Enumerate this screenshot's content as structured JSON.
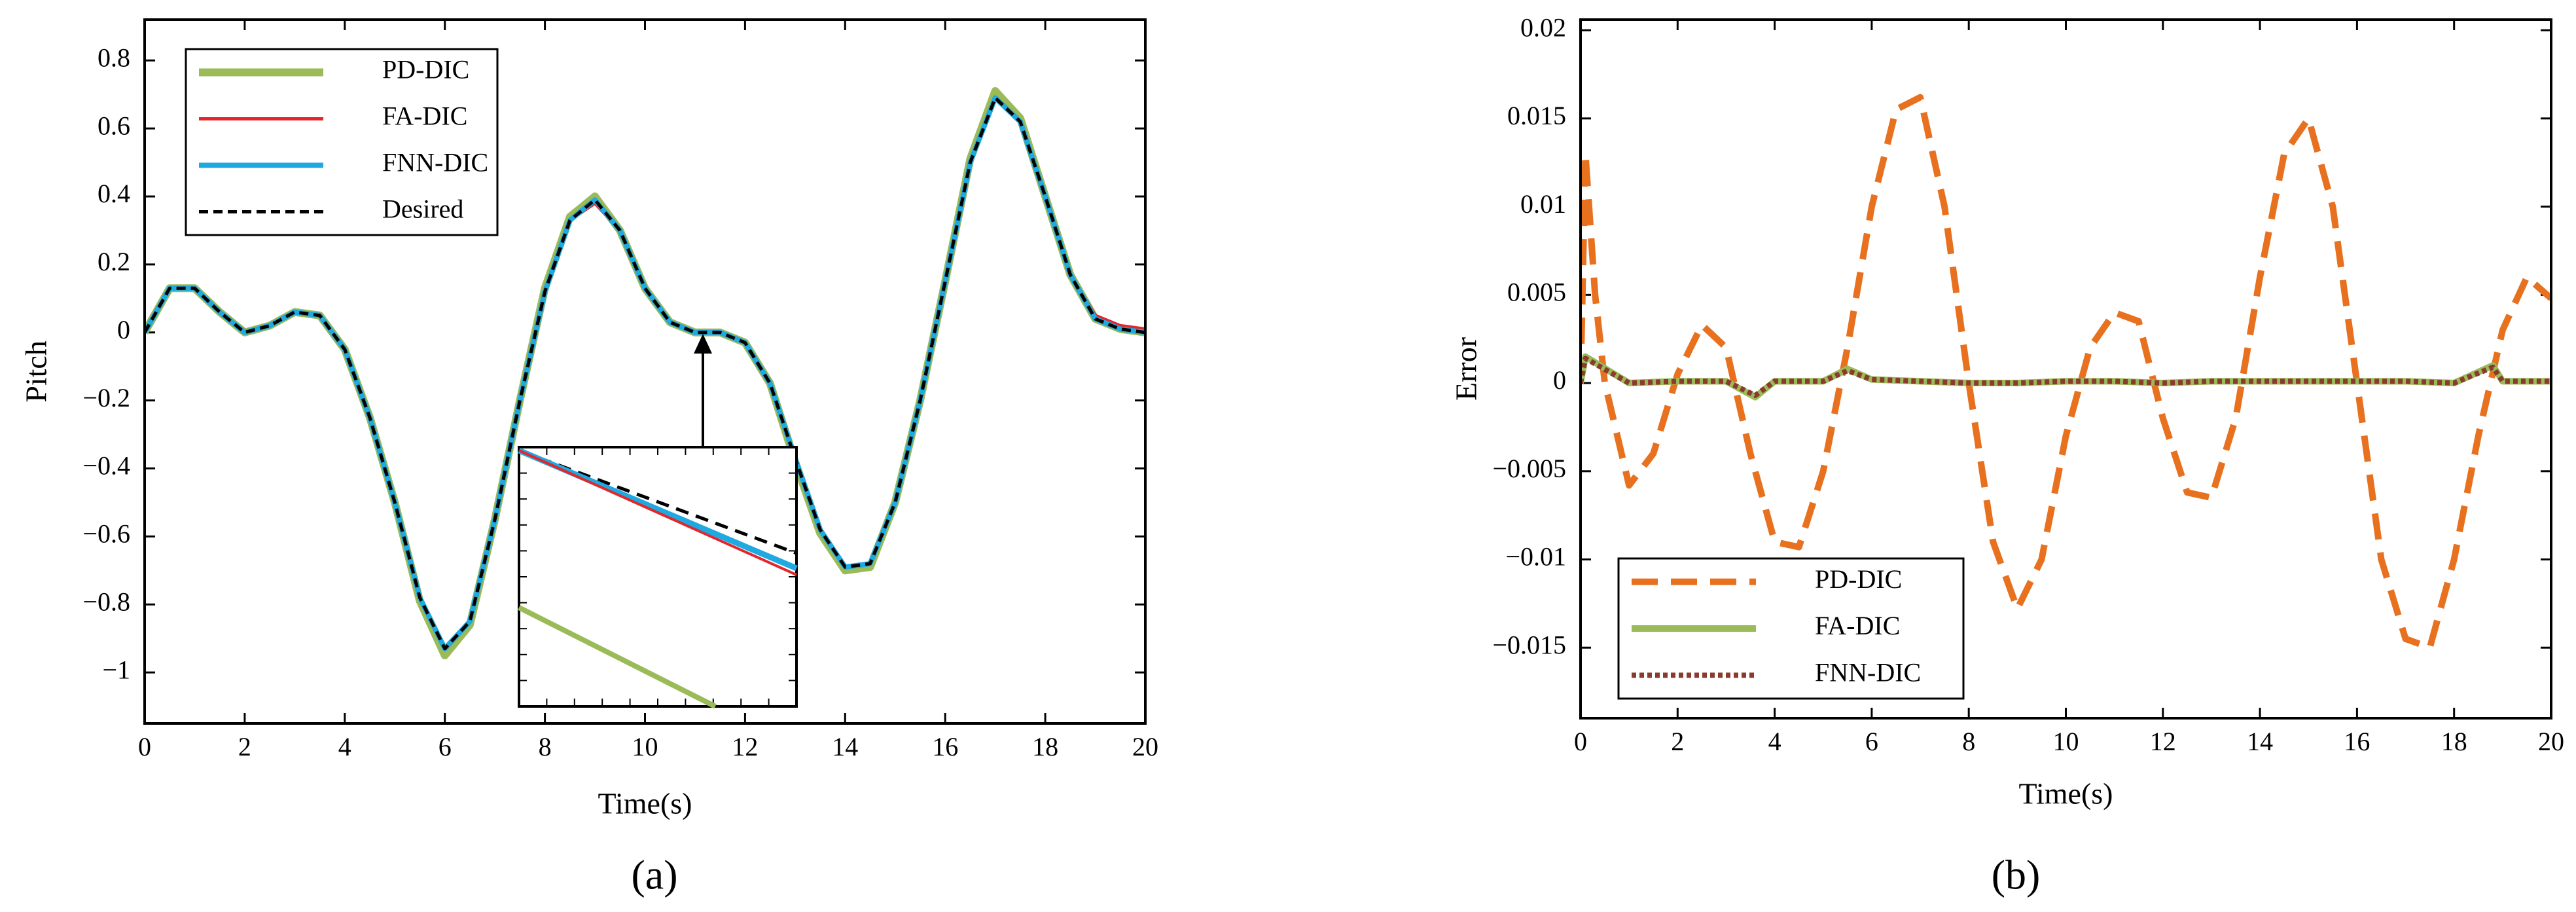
{
  "chart_data": [
    {
      "type": "line",
      "caption": "(a)",
      "xlabel": "Time(s)",
      "ylabel": "Pitch",
      "xlim": [
        0,
        20
      ],
      "xticks": [
        0,
        2,
        4,
        6,
        8,
        10,
        12,
        14,
        16,
        18,
        20
      ],
      "ylim": [
        -1.15,
        0.92
      ],
      "yticks": [
        {
          "value": -1,
          "label": "−1"
        },
        {
          "value": -0.8,
          "label": "−0.8"
        },
        {
          "value": -0.6,
          "label": "−0.6"
        },
        {
          "value": -0.4,
          "label": "−0.4"
        },
        {
          "value": -0.2,
          "label": "−0.2"
        },
        0,
        0.2,
        0.4,
        0.6,
        0.8
      ],
      "legend": "upper left",
      "x": [
        0,
        0.5,
        1,
        1.5,
        2,
        2.5,
        3,
        3.5,
        4,
        4.5,
        5,
        5.5,
        6,
        6.5,
        7,
        7.5,
        8,
        8.5,
        9,
        9.5,
        10,
        10.5,
        11,
        11.5,
        12,
        12.5,
        13,
        13.5,
        14,
        14.5,
        15,
        15.5,
        16,
        16.5,
        17,
        17.5,
        18,
        18.5,
        19,
        19.5,
        20
      ],
      "series": [
        {
          "name": "PD-DIC",
          "color": "#9bbb59",
          "linestyle": "solid",
          "values": [
            0,
            0.13,
            0.13,
            0.06,
            0.0,
            0.02,
            0.06,
            0.05,
            -0.05,
            -0.25,
            -0.5,
            -0.79,
            -0.95,
            -0.86,
            -0.55,
            -0.2,
            0.13,
            0.34,
            0.4,
            0.3,
            0.13,
            0.03,
            0.0,
            0.0,
            -0.03,
            -0.15,
            -0.38,
            -0.59,
            -0.7,
            -0.69,
            -0.5,
            -0.2,
            0.15,
            0.51,
            0.71,
            0.63,
            0.4,
            0.17,
            0.04,
            0.01,
            0
          ]
        },
        {
          "name": "FA-DIC",
          "color": "#e3262b",
          "linestyle": "solid",
          "values": [
            0,
            0.13,
            0.13,
            0.06,
            0.0,
            0.02,
            0.06,
            0.05,
            -0.05,
            -0.25,
            -0.5,
            -0.78,
            -0.93,
            -0.85,
            -0.55,
            -0.2,
            0.12,
            0.33,
            0.38,
            0.3,
            0.13,
            0.03,
            0.0,
            0.0,
            -0.03,
            -0.15,
            -0.37,
            -0.58,
            -0.69,
            -0.68,
            -0.5,
            -0.2,
            0.15,
            0.5,
            0.69,
            0.62,
            0.4,
            0.17,
            0.05,
            0.02,
            0.01
          ]
        },
        {
          "name": "FNN-DIC",
          "color": "#1fa9e1",
          "linestyle": "solid",
          "values": [
            0,
            0.13,
            0.13,
            0.06,
            0.0,
            0.02,
            0.06,
            0.05,
            -0.05,
            -0.25,
            -0.5,
            -0.78,
            -0.93,
            -0.85,
            -0.55,
            -0.2,
            0.12,
            0.33,
            0.39,
            0.3,
            0.13,
            0.03,
            0.0,
            0.0,
            -0.03,
            -0.15,
            -0.37,
            -0.58,
            -0.69,
            -0.68,
            -0.5,
            -0.2,
            0.15,
            0.5,
            0.69,
            0.62,
            0.4,
            0.17,
            0.04,
            0.01,
            0
          ]
        },
        {
          "name": "Desired",
          "color": "#000000",
          "linestyle": "dashed",
          "values": [
            0,
            0.13,
            0.13,
            0.06,
            0.0,
            0.02,
            0.06,
            0.05,
            -0.05,
            -0.25,
            -0.5,
            -0.78,
            -0.93,
            -0.85,
            -0.55,
            -0.2,
            0.12,
            0.33,
            0.39,
            0.3,
            0.13,
            0.03,
            0.0,
            0.0,
            -0.03,
            -0.15,
            -0.37,
            -0.58,
            -0.69,
            -0.68,
            -0.5,
            -0.2,
            0.15,
            0.5,
            0.69,
            0.62,
            0.4,
            0.17,
            0.04,
            0.01,
            0
          ]
        }
      ]
    },
    {
      "type": "line",
      "caption": "(b)",
      "xlabel": "Time(s)",
      "ylabel": "Error",
      "xlim": [
        0,
        20
      ],
      "xticks": [
        0,
        2,
        4,
        6,
        8,
        10,
        12,
        14,
        16,
        18,
        20
      ],
      "ylim": [
        -0.019,
        0.0206
      ],
      "yticks": [
        {
          "value": -0.015,
          "label": "−0.015"
        },
        {
          "value": -0.01,
          "label": "−0.01"
        },
        {
          "value": -0.005,
          "label": "−0.005"
        },
        0,
        0.005,
        0.01,
        0.015,
        0.02
      ],
      "legend": "lower left",
      "series": [
        {
          "name": "PD-DIC",
          "color": "#e8711f",
          "linestyle": "dashed",
          "x": [
            0,
            0.1,
            0.3,
            0.5,
            1,
            1.5,
            2,
            2.5,
            3,
            3.5,
            4,
            4.5,
            5,
            5.5,
            6,
            6.5,
            7,
            7.5,
            8,
            8.5,
            9,
            9.5,
            10,
            10.5,
            11,
            11.5,
            12,
            12.5,
            13,
            13.5,
            14,
            14.5,
            15,
            15.5,
            16,
            16.5,
            17,
            17.5,
            18,
            18.5,
            19,
            19.5,
            20
          ],
          "values": [
            0,
            0.013,
            0.005,
            0,
            -0.0058,
            -0.004,
            0.0005,
            0.0033,
            0.002,
            -0.004,
            -0.009,
            -0.0093,
            -0.005,
            0.002,
            0.01,
            0.0155,
            0.0162,
            0.01,
            0.0,
            -0.009,
            -0.0128,
            -0.01,
            -0.003,
            0.002,
            0.004,
            0.0035,
            -0.002,
            -0.0062,
            -0.0065,
            -0.002,
            0.006,
            0.013,
            0.015,
            0.01,
            0.0,
            -0.01,
            -0.0145,
            -0.015,
            -0.01,
            -0.003,
            0.003,
            0.006,
            0.0048
          ]
        },
        {
          "name": "FA-DIC",
          "color": "#9bbb59",
          "linestyle": "solid",
          "x": [
            0,
            0.1,
            1,
            2,
            3,
            3.6,
            4,
            5,
            5.5,
            6,
            7,
            8,
            9,
            10,
            11,
            12,
            13,
            14,
            15,
            16,
            17,
            18,
            18.8,
            19,
            20
          ],
          "values": [
            0,
            0.0015,
            0.0,
            0.0001,
            0.0001,
            -0.0008,
            0.0001,
            0.0001,
            0.0008,
            0.0002,
            0.0001,
            0.0,
            0.0,
            0.0001,
            0.0001,
            0.0,
            0.0001,
            0.0001,
            0.0001,
            0.0001,
            0.0001,
            0.0,
            0.001,
            0.0001,
            0.0001
          ]
        },
        {
          "name": "FNN-DIC",
          "color": "#8b3a2e",
          "linestyle": "dotted",
          "x": [
            0,
            0.1,
            1,
            2,
            3,
            3.6,
            4,
            5,
            5.5,
            6,
            7,
            8,
            9,
            10,
            11,
            12,
            13,
            14,
            15,
            16,
            17,
            18,
            18.8,
            19,
            20
          ],
          "values": [
            0,
            0.0014,
            0.0,
            0.0001,
            0.0001,
            -0.0007,
            0.0001,
            0.0001,
            0.0007,
            0.0002,
            0.0001,
            0.0,
            0.0,
            0.0001,
            0.0001,
            0.0,
            0.0001,
            0.0001,
            0.0001,
            0.0001,
            0.0001,
            0.0,
            0.0009,
            0.0001,
            0.0001
          ]
        }
      ]
    }
  ]
}
